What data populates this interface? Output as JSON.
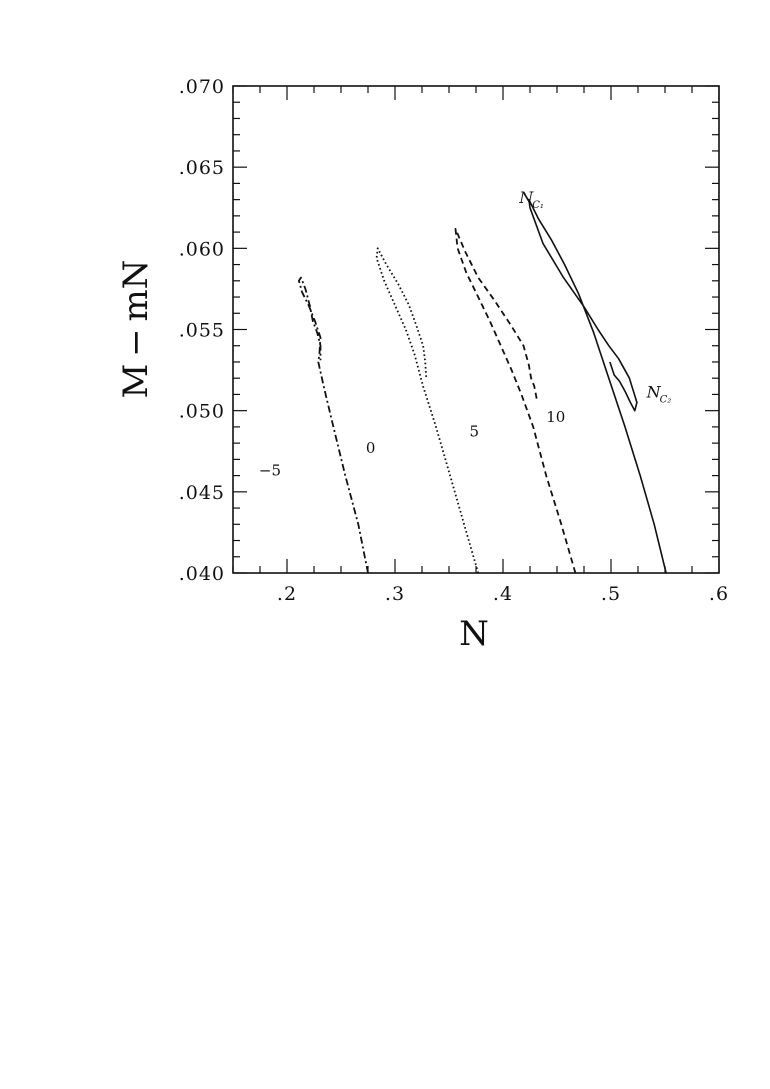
{
  "chart_data": {
    "type": "line",
    "xlabel": "N",
    "ylabel": "M − mN",
    "xlim": [
      0.15,
      0.6
    ],
    "ylim": [
      0.04,
      0.07
    ],
    "x_ticks": [
      {
        "value": 0.2,
        "label": ".2"
      },
      {
        "value": 0.3,
        "label": ".3"
      },
      {
        "value": 0.4,
        "label": ".4"
      },
      {
        "value": 0.5,
        "label": ".5"
      },
      {
        "value": 0.6,
        "label": ".6"
      }
    ],
    "y_ticks": [
      {
        "value": 0.04,
        "label": ".040"
      },
      {
        "value": 0.045,
        "label": ".045"
      },
      {
        "value": 0.05,
        "label": ".050"
      },
      {
        "value": 0.055,
        "label": ".055"
      },
      {
        "value": 0.06,
        "label": ".060"
      },
      {
        "value": 0.065,
        "label": ".065"
      },
      {
        "value": 0.07,
        "label": ".070"
      }
    ],
    "grid": false,
    "legend": "none",
    "series": [
      {
        "label": "−5",
        "dash": "dashdot",
        "x": [
          0.275,
          0.266,
          0.254,
          0.243,
          0.234,
          0.229,
          0.23,
          0.231,
          0.226,
          0.22,
          0.214,
          0.211,
          0.213,
          0.217,
          0.221,
          0.224,
          0.228,
          0.231,
          0.231
        ],
        "y": [
          0.04,
          0.043,
          0.046,
          0.049,
          0.0515,
          0.053,
          0.0535,
          0.0545,
          0.0555,
          0.0565,
          0.0573,
          0.058,
          0.0582,
          0.0575,
          0.0565,
          0.0555,
          0.0548,
          0.054,
          0.0531
        ]
      },
      {
        "label": "0",
        "dash": "dotted",
        "x": [
          0.377,
          0.364,
          0.351,
          0.338,
          0.326,
          0.318,
          0.31,
          0.3,
          0.29,
          0.283,
          0.284,
          0.292,
          0.303,
          0.313,
          0.32,
          0.326,
          0.328,
          0.329
        ],
        "y": [
          0.04,
          0.043,
          0.046,
          0.049,
          0.0515,
          0.0535,
          0.055,
          0.0565,
          0.058,
          0.0594,
          0.06,
          0.059,
          0.0578,
          0.0565,
          0.0552,
          0.054,
          0.053,
          0.052
        ]
      },
      {
        "label": "5",
        "dash": "dashed",
        "x": [
          0.467,
          0.454,
          0.44,
          0.428,
          0.417,
          0.408,
          0.398,
          0.388,
          0.377,
          0.366,
          0.358,
          0.356,
          0.365,
          0.377,
          0.392,
          0.408,
          0.419,
          0.424,
          0.426,
          0.429,
          0.431,
          0.43
        ],
        "y": [
          0.04,
          0.043,
          0.046,
          0.049,
          0.051,
          0.0525,
          0.054,
          0.0555,
          0.057,
          0.0585,
          0.06,
          0.0612,
          0.0598,
          0.0582,
          0.0568,
          0.0552,
          0.054,
          0.0528,
          0.052,
          0.0515,
          0.0508,
          0.0505
        ]
      },
      {
        "label": "10",
        "dash": "solid",
        "x": [
          0.551,
          0.54,
          0.527,
          0.513,
          0.498,
          0.484,
          0.47,
          0.457,
          0.445,
          0.433,
          0.424,
          0.425,
          0.437,
          0.456,
          0.475,
          0.488,
          0.498,
          0.507,
          0.517,
          0.524,
          0.522,
          0.518,
          0.513,
          0.508,
          0.503,
          0.499
        ],
        "y": [
          0.04,
          0.043,
          0.046,
          0.049,
          0.052,
          0.0548,
          0.0572,
          0.059,
          0.0605,
          0.0618,
          0.063,
          0.0625,
          0.0603,
          0.0582,
          0.0564,
          0.055,
          0.054,
          0.0532,
          0.052,
          0.0505,
          0.05,
          0.0505,
          0.0512,
          0.0518,
          0.0522,
          0.053
        ]
      }
    ],
    "curve_labels": [
      {
        "text": "−5",
        "x": 0.174,
        "y": 0.046
      },
      {
        "text": "0",
        "x": 0.273,
        "y": 0.0474
      },
      {
        "text": "5",
        "x": 0.369,
        "y": 0.0484
      },
      {
        "text": "10",
        "x": 0.44,
        "y": 0.0493
      }
    ],
    "annotations": [
      {
        "main": "N",
        "sub": "C₁",
        "x": 0.415,
        "y": 0.0628
      },
      {
        "main": "N",
        "sub": "C₂",
        "x": 0.533,
        "y": 0.0508
      }
    ]
  }
}
